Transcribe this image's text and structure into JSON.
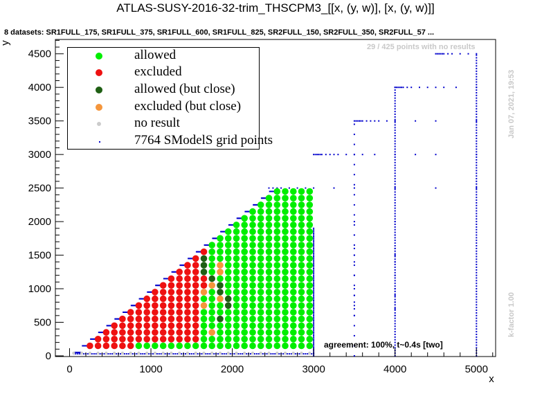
{
  "title": "ATLAS-SUSY-2016-32-trim_THSCPM3_[[x, (y, w)], [x, (y, w)]]",
  "subtitle": "8 datasets: SR1FULL_175, SR1FULL_375, SR1FULL_600, SR1FULL_825, SR2FULL_150, SR2FULL_350, SR2FULL_57 ...",
  "no_results_text": "29 / 425 points with no results",
  "agreement_text": "agreement: 100%, t~0.4s [two]",
  "date_text": "Jan 07, 2021, 19:53",
  "kfactor_text": "k-factor 1.00",
  "colors": {
    "allowed": "#00ee00",
    "excluded": "#ee1111",
    "allowed_close": "#1f5f14",
    "excluded_close": "#f5963c",
    "no_result": "#cccccc",
    "grid_points": "#0000cc"
  },
  "legend": [
    {
      "label": "allowed",
      "color": "#00ee00"
    },
    {
      "label": "excluded",
      "color": "#ee1111"
    },
    {
      "label": "allowed (but close)",
      "color": "#1f5f14"
    },
    {
      "label": "excluded (but close)",
      "color": "#f5963c"
    },
    {
      "label": "no result",
      "color": "#cccccc"
    },
    {
      "label": "7764 SModelS grid points",
      "color": "#0000cc"
    }
  ],
  "chart_data": {
    "type": "scatter",
    "xlabel": "x",
    "ylabel": "y",
    "xlim": [
      -200,
      5250
    ],
    "ylim": [
      0,
      4750
    ],
    "x_ticks": [
      0,
      1000,
      2000,
      3000,
      4000,
      5000
    ],
    "y_ticks": [
      0,
      500,
      1000,
      1500,
      2000,
      2500,
      3000,
      3500,
      4000,
      4500
    ],
    "grid": false,
    "legend_position": "top-left",
    "points_description": "Triangular grid of results: x from 100 to 3000 in steps of 100, y from 0 up to about x-100 (capped at 2500) in steps of 100. Excluded for x <= 1500 (y >= 200), allowed for x >= 1700 plus y = 200 row; close points near x ~ 1600-1900; no result at y = 0 row.",
    "close_allowed": [
      [
        1650,
        1450
      ],
      [
        1650,
        1350
      ],
      [
        1650,
        1250
      ],
      [
        1750,
        1150
      ],
      [
        1850,
        1050
      ],
      [
        1850,
        950
      ],
      [
        1950,
        850
      ],
      [
        1950,
        750
      ],
      [
        1850,
        550
      ]
    ],
    "close_excluded": [
      [
        1850,
        1350
      ],
      [
        1850,
        1250
      ],
      [
        1750,
        1050
      ],
      [
        1650,
        950
      ],
      [
        1850,
        850
      ],
      [
        1650,
        750
      ],
      [
        1750,
        350
      ]
    ],
    "grid_columns_x": [
      3500,
      4000,
      5000
    ],
    "grid_rows_y": [
      2500,
      3000,
      3500,
      4000,
      4500
    ]
  }
}
